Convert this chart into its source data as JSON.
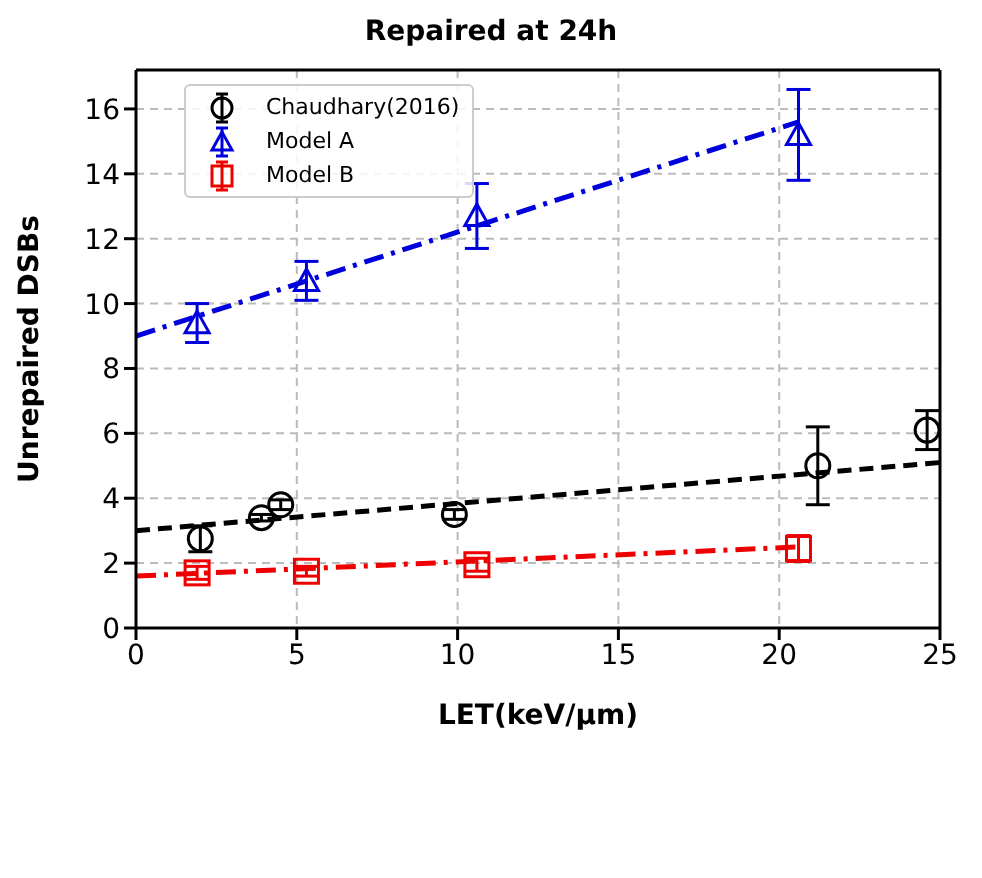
{
  "chart_data": {
    "type": "scatter",
    "title": "Repaired at 24h",
    "xlabel": "LET(keV/μm)",
    "ylabel": "Unrepaired DSBs",
    "xlim": [
      0,
      25
    ],
    "xticks": [
      0,
      5,
      10,
      15,
      20,
      25
    ],
    "ylim": [
      0,
      17.2
    ],
    "yticks": [
      0,
      2,
      4,
      6,
      8,
      10,
      12,
      14,
      16
    ],
    "grid": true,
    "legend": "top left",
    "series": [
      {
        "name": "Chaudhary(2016)",
        "type": "scatter",
        "marker": "circle",
        "color": "#000000",
        "x": [
          2,
          3.9,
          4.5,
          9.9,
          21.2,
          24.6
        ],
        "values": [
          2.75,
          3.4,
          3.8,
          3.5,
          5.0,
          6.1
        ],
        "errors": [
          0.4,
          0.1,
          0.15,
          0.15,
          1.2,
          0.6
        ]
      },
      {
        "name": "Model A",
        "type": "scatter",
        "marker": "triangle",
        "color": "#0000dd",
        "x": [
          1.9,
          5.3,
          10.6,
          20.6
        ],
        "values": [
          9.4,
          10.7,
          12.7,
          15.2
        ],
        "errors": [
          0.6,
          0.6,
          1.0,
          1.4
        ]
      },
      {
        "name": "Model B",
        "type": "scatter",
        "marker": "square",
        "color": "#ee0000",
        "x": [
          1.9,
          5.3,
          10.6,
          20.6
        ],
        "values": [
          1.7,
          1.75,
          1.95,
          2.45
        ],
        "errors": [
          0.2,
          0.15,
          0.2,
          0.4
        ]
      },
      {
        "type": "line",
        "line_style": "dashed",
        "color": "#000000",
        "x": [
          0,
          25
        ],
        "values": [
          3.0,
          5.1
        ]
      },
      {
        "type": "line",
        "line_style": "dashdot",
        "color": "#0000dd",
        "x": [
          0,
          20.6
        ],
        "values": [
          9.0,
          15.6
        ]
      },
      {
        "type": "line",
        "line_style": "dashdot",
        "color": "#ee0000",
        "x": [
          0,
          20.6
        ],
        "values": [
          1.6,
          2.5
        ]
      }
    ]
  }
}
